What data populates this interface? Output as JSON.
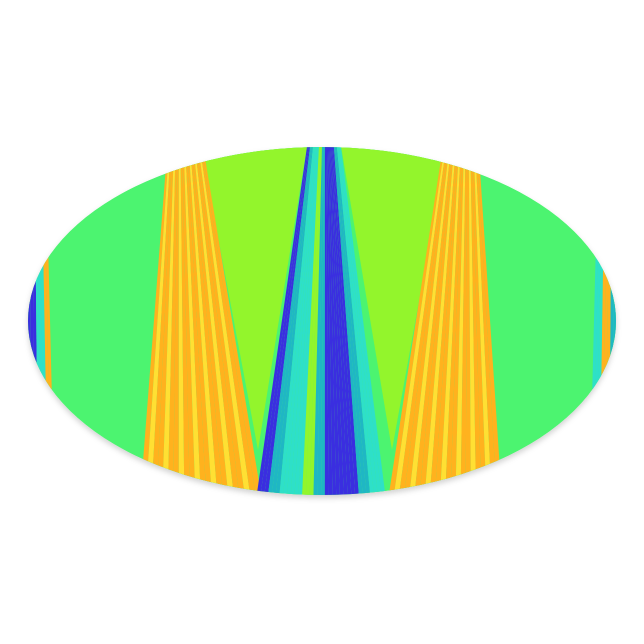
{
  "product": {
    "shape": "oval sticker",
    "colors": {
      "background": "#ffffff",
      "green": "#4cf470",
      "lime": "#93f52c",
      "orange": "#ffb21e",
      "yellow": "#ffe033",
      "cyan": "#2ee0c8",
      "blue": "#3a2ee0",
      "teal": "#1fb7c4"
    }
  }
}
